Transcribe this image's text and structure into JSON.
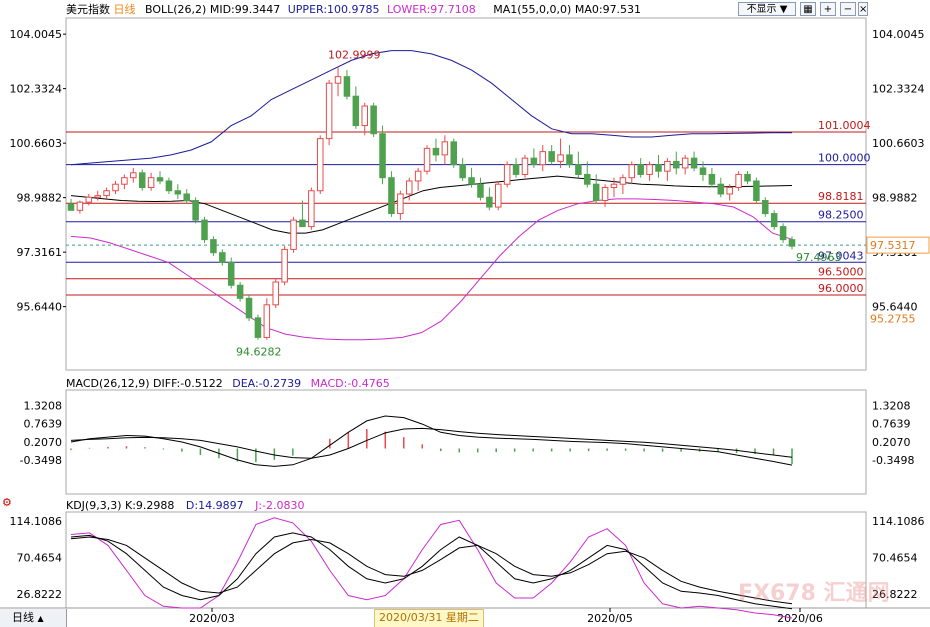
{
  "header": {
    "instrument": "美元指数",
    "period": "日线",
    "boll_label": "BOLL(26,2)",
    "mid": "MID:99.3447",
    "upper": "UPPER:100.9785",
    "lower": "LOWER:97.7108",
    "ma_label": "MA1(55,0,0,0)",
    "ma_value": "MA0:97.531",
    "hide_label": "不显示"
  },
  "macd_header": {
    "label": "MACD(26,12,9)",
    "diff": "DIFF:-0.5122",
    "dea": "DEA:-0.2739",
    "macd": "MACD:-0.4765"
  },
  "kdj_header": {
    "label": "KDJ(9,3,3)",
    "k": "K:9.2988",
    "d": "D:14.9897",
    "j": "J:-2.0830"
  },
  "footer": {
    "period_tab": "日线",
    "cursor_date": "2020/03/31 星期二"
  },
  "watermark": "FX678 汇通网",
  "colors": {
    "up": "#e84b4b",
    "down": "#4fa14f",
    "mid": "#000000",
    "band": "#1a1a9c",
    "lower": "#cc2bcc",
    "red_line": "#c01818",
    "blue_line": "#1a1aa0"
  },
  "chart_data": [
    {
      "type": "candlestick",
      "title": "美元指数 日线",
      "y_ticks": [
        104.0045,
        102.3324,
        100.6603,
        98.9882,
        97.3161,
        95.644
      ],
      "right_extra_ticks": [
        97.5317,
        95.2755
      ],
      "ylim": [
        93.7,
        104.5
      ],
      "x_ticks": [
        "2020/03",
        "2020/05",
        "2020/06"
      ],
      "annotations": {
        "high": "102.9999",
        "low": "94.6282",
        "last": "97.4963"
      },
      "levels": [
        {
          "value": 101.0004,
          "label": "101.0004",
          "color": "red"
        },
        {
          "value": 100.0,
          "label": "100.0000",
          "color": "blue"
        },
        {
          "value": 98.8181,
          "label": "98.8181",
          "color": "red"
        },
        {
          "value": 98.25,
          "label": "98.2500",
          "color": "blue"
        },
        {
          "value": 97.0043,
          "label": "97.0043",
          "color": "blue"
        },
        {
          "value": 96.5,
          "label": "96.5000",
          "color": "red"
        },
        {
          "value": 96.0,
          "label": "96.0000",
          "color": "red"
        }
      ],
      "ohlc": [
        [
          98.8,
          98.95,
          98.65,
          98.6
        ],
        [
          98.6,
          98.9,
          98.5,
          98.85
        ],
        [
          98.85,
          99.1,
          98.75,
          99.0
        ],
        [
          99.0,
          99.2,
          98.9,
          99.05
        ],
        [
          99.05,
          99.3,
          98.95,
          99.2
        ],
        [
          99.2,
          99.5,
          99.1,
          99.4
        ],
        [
          99.4,
          99.7,
          99.25,
          99.6
        ],
        [
          99.6,
          99.9,
          99.45,
          99.75
        ],
        [
          99.75,
          99.85,
          99.2,
          99.3
        ],
        [
          99.3,
          99.75,
          99.2,
          99.6
        ],
        [
          99.6,
          99.8,
          99.4,
          99.5
        ],
        [
          99.5,
          99.6,
          99.1,
          99.2
        ],
        [
          99.2,
          99.4,
          98.95,
          99.1
        ],
        [
          99.1,
          99.25,
          98.8,
          98.9
        ],
        [
          98.9,
          99.0,
          98.2,
          98.3
        ],
        [
          98.3,
          98.4,
          97.6,
          97.7
        ],
        [
          97.7,
          97.8,
          97.2,
          97.3
        ],
        [
          97.3,
          97.4,
          96.9,
          97.0
        ],
        [
          97.0,
          97.15,
          96.2,
          96.3
        ],
        [
          96.3,
          96.4,
          95.8,
          95.9
        ],
        [
          95.9,
          96.0,
          95.2,
          95.3
        ],
        [
          95.3,
          95.4,
          94.63,
          94.7
        ],
        [
          94.7,
          95.9,
          94.63,
          95.7
        ],
        [
          95.7,
          96.5,
          95.6,
          96.4
        ],
        [
          96.4,
          97.5,
          96.3,
          97.4
        ],
        [
          97.4,
          98.4,
          97.3,
          98.3
        ],
        [
          98.3,
          98.9,
          98.1,
          98.1
        ],
        [
          98.1,
          99.3,
          98.0,
          99.2
        ],
        [
          99.2,
          100.9,
          99.1,
          100.8
        ],
        [
          100.8,
          102.6,
          100.6,
          102.5
        ],
        [
          102.5,
          103.0,
          102.1,
          102.7
        ],
        [
          102.7,
          102.9,
          102.0,
          102.1
        ],
        [
          102.1,
          102.4,
          101.1,
          101.2
        ],
        [
          101.2,
          101.9,
          100.9,
          101.8
        ],
        [
          101.8,
          101.9,
          100.85,
          100.95
        ],
        [
          100.95,
          101.2,
          99.4,
          99.6
        ],
        [
          99.6,
          99.8,
          98.4,
          98.5
        ],
        [
          98.5,
          99.2,
          98.3,
          99.1
        ],
        [
          99.1,
          99.6,
          98.9,
          99.5
        ],
        [
          99.5,
          99.9,
          99.2,
          99.8
        ],
        [
          99.8,
          100.6,
          99.7,
          100.5
        ],
        [
          100.5,
          100.8,
          100.1,
          100.3
        ],
        [
          100.3,
          100.9,
          100.0,
          100.7
        ],
        [
          100.7,
          100.8,
          99.9,
          100.0
        ],
        [
          100.0,
          100.2,
          99.5,
          99.6
        ],
        [
          99.6,
          99.9,
          99.3,
          99.4
        ],
        [
          99.4,
          99.6,
          98.9,
          99.0
        ],
        [
          99.0,
          99.3,
          98.6,
          98.7
        ],
        [
          98.7,
          99.5,
          98.6,
          99.4
        ],
        [
          99.4,
          100.1,
          99.3,
          100.0
        ],
        [
          100.0,
          100.2,
          99.6,
          99.7
        ],
        [
          99.7,
          100.3,
          99.6,
          100.2
        ],
        [
          100.2,
          100.5,
          99.9,
          100.0
        ],
        [
          100.0,
          100.6,
          99.8,
          100.4
        ],
        [
          100.4,
          100.6,
          100.0,
          100.1
        ],
        [
          100.1,
          100.8,
          99.9,
          100.3
        ],
        [
          100.3,
          100.6,
          99.9,
          100.0
        ],
        [
          100.0,
          100.4,
          99.6,
          99.7
        ],
        [
          99.7,
          100.1,
          99.3,
          99.4
        ],
        [
          99.4,
          99.7,
          98.8,
          98.9
        ],
        [
          98.9,
          99.4,
          98.7,
          99.3
        ],
        [
          99.3,
          99.6,
          99.0,
          99.4
        ],
        [
          99.4,
          99.7,
          99.1,
          99.6
        ],
        [
          99.6,
          100.1,
          99.4,
          100.0
        ],
        [
          100.0,
          100.2,
          99.6,
          99.7
        ],
        [
          99.7,
          100.1,
          99.5,
          100.0
        ],
        [
          100.0,
          100.3,
          99.6,
          99.8
        ],
        [
          99.8,
          100.2,
          99.5,
          100.1
        ],
        [
          100.1,
          100.4,
          99.7,
          99.9
        ],
        [
          99.9,
          100.3,
          99.7,
          100.2
        ],
        [
          100.2,
          100.4,
          99.8,
          99.9
        ],
        [
          99.9,
          100.1,
          99.5,
          99.7
        ],
        [
          99.7,
          99.9,
          99.3,
          99.4
        ],
        [
          99.4,
          99.6,
          99.0,
          99.1
        ],
        [
          99.1,
          99.4,
          98.9,
          99.3
        ],
        [
          99.3,
          99.8,
          99.2,
          99.7
        ],
        [
          99.7,
          99.8,
          99.4,
          99.5
        ],
        [
          99.5,
          99.6,
          98.8,
          98.9
        ],
        [
          98.9,
          99.0,
          98.4,
          98.5
        ],
        [
          98.5,
          98.6,
          98.0,
          98.1
        ],
        [
          98.1,
          98.2,
          97.6,
          97.7
        ],
        [
          97.7,
          97.8,
          97.4,
          97.5
        ]
      ],
      "mid_band": [
        99.05,
        99.0,
        98.95,
        98.9,
        98.88,
        98.87,
        98.88,
        98.9,
        98.8,
        98.6,
        98.4,
        98.2,
        98.0,
        97.9,
        97.9,
        98.0,
        98.2,
        98.4,
        98.6,
        98.8,
        99.0,
        99.2,
        99.3,
        99.35,
        99.4,
        99.45,
        99.5,
        99.55,
        99.6,
        99.65,
        99.6,
        99.55,
        99.5,
        99.45,
        99.4,
        99.38,
        99.35,
        99.33,
        99.32,
        99.32,
        99.33,
        99.34,
        99.35,
        99.36
      ],
      "upper_band": [
        100.0,
        100.05,
        100.1,
        100.15,
        100.2,
        100.3,
        100.45,
        100.7,
        101.2,
        101.5,
        102.0,
        102.3,
        102.6,
        102.9,
        103.2,
        103.4,
        103.5,
        103.5,
        103.4,
        103.2,
        102.9,
        102.5,
        102.0,
        101.5,
        101.1,
        100.95,
        100.95,
        100.9,
        100.85,
        100.85,
        100.9,
        100.95,
        100.95,
        100.96,
        100.97,
        100.98,
        100.98
      ],
      "lower_band": [
        97.8,
        97.75,
        97.6,
        97.4,
        97.2,
        97.0,
        96.6,
        96.2,
        95.8,
        95.4,
        95.0,
        94.8,
        94.7,
        94.65,
        94.63,
        94.63,
        94.65,
        94.7,
        94.85,
        95.2,
        95.8,
        96.5,
        97.2,
        97.8,
        98.3,
        98.6,
        98.8,
        98.9,
        98.95,
        98.95,
        98.93,
        98.9,
        98.85,
        98.8,
        98.7,
        98.4,
        97.9,
        97.71
      ]
    },
    {
      "type": "line+bar",
      "title": "MACD(26,12,9)",
      "y_ticks": [
        1.3208,
        0.7639,
        0.207,
        -0.3498
      ],
      "ylim": [
        -1.4,
        1.8
      ],
      "series": [
        {
          "name": "DIFF",
          "values": [
            0.2,
            0.3,
            0.35,
            0.4,
            0.38,
            0.3,
            0.2,
            0.05,
            -0.15,
            -0.35,
            -0.5,
            -0.55,
            -0.5,
            -0.3,
            0.1,
            0.5,
            0.85,
            1.0,
            0.95,
            0.75,
            0.5,
            0.4,
            0.35,
            0.32,
            0.3,
            0.28,
            0.25,
            0.22,
            0.2,
            0.18,
            0.15,
            0.1,
            0.05,
            0.0,
            -0.05,
            -0.1,
            -0.2,
            -0.3,
            -0.4,
            -0.51
          ]
        },
        {
          "name": "DEA",
          "values": [
            0.25,
            0.28,
            0.3,
            0.33,
            0.34,
            0.33,
            0.3,
            0.25,
            0.15,
            0.05,
            -0.08,
            -0.2,
            -0.28,
            -0.3,
            -0.2,
            0.0,
            0.25,
            0.48,
            0.6,
            0.62,
            0.58,
            0.52,
            0.47,
            0.43,
            0.4,
            0.37,
            0.34,
            0.31,
            0.28,
            0.25,
            0.22,
            0.19,
            0.15,
            0.1,
            0.05,
            0.0,
            -0.06,
            -0.13,
            -0.2,
            -0.27
          ]
        },
        {
          "name": "MACD",
          "values": [
            -0.05,
            0.02,
            0.05,
            0.07,
            0.04,
            -0.03,
            -0.1,
            -0.2,
            -0.3,
            -0.4,
            -0.42,
            -0.35,
            -0.22,
            0.0,
            0.3,
            0.5,
            0.6,
            0.52,
            0.35,
            0.13,
            -0.08,
            -0.12,
            -0.12,
            -0.11,
            -0.1,
            -0.09,
            -0.09,
            -0.09,
            -0.08,
            -0.07,
            -0.07,
            -0.09,
            -0.1,
            -0.1,
            -0.1,
            -0.1,
            -0.14,
            -0.17,
            -0.2,
            -0.48
          ]
        }
      ]
    },
    {
      "type": "line",
      "title": "KDJ(9,3,3)",
      "y_ticks": [
        114.1086,
        70.4654,
        26.8222
      ],
      "ylim": [
        10,
        125
      ],
      "series": [
        {
          "name": "K",
          "values": [
            95,
            97,
            90,
            75,
            55,
            35,
            25,
            20,
            25,
            45,
            75,
            95,
            100,
            95,
            80,
            60,
            45,
            40,
            45,
            60,
            80,
            95,
            85,
            65,
            45,
            40,
            45,
            55,
            70,
            85,
            80,
            60,
            40,
            30,
            28,
            25,
            20,
            15,
            12,
            9
          ]
        },
        {
          "name": "D",
          "values": [
            93,
            95,
            92,
            85,
            70,
            55,
            40,
            30,
            28,
            35,
            55,
            75,
            88,
            92,
            88,
            75,
            60,
            50,
            48,
            55,
            68,
            82,
            85,
            75,
            60,
            50,
            48,
            52,
            62,
            75,
            78,
            70,
            55,
            42,
            35,
            30,
            26,
            22,
            18,
            15
          ]
        },
        {
          "name": "J",
          "values": [
            98,
            100,
            85,
            55,
            25,
            12,
            10,
            10,
            25,
            65,
            110,
            118,
            112,
            90,
            55,
            25,
            20,
            25,
            45,
            80,
            110,
            115,
            80,
            40,
            22,
            22,
            40,
            65,
            95,
            105,
            85,
            40,
            15,
            10,
            12,
            10,
            8,
            4,
            2,
            -2
          ]
        }
      ]
    }
  ]
}
